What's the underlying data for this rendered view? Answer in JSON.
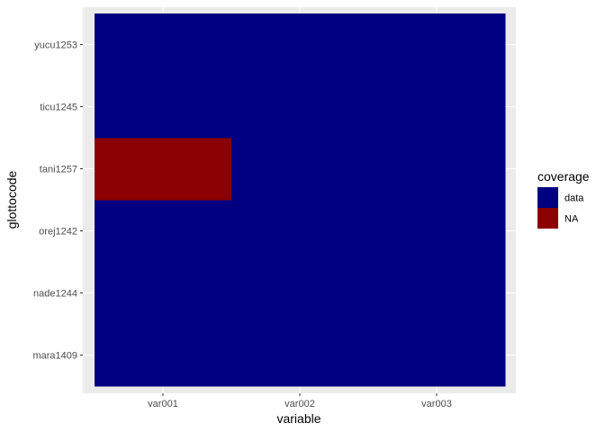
{
  "chart_data": {
    "type": "heatmap",
    "title": "",
    "xlabel": "variable",
    "ylabel": "glottocode",
    "x_categories": [
      "var001",
      "var002",
      "var003"
    ],
    "y_categories": [
      "mara1409",
      "nade1244",
      "orej1242",
      "tani1257",
      "ticu1245",
      "yucu1253"
    ],
    "cells": [
      {
        "x": "var001",
        "y": "mara1409",
        "value": "data"
      },
      {
        "x": "var002",
        "y": "mara1409",
        "value": "data"
      },
      {
        "x": "var003",
        "y": "mara1409",
        "value": "data"
      },
      {
        "x": "var001",
        "y": "nade1244",
        "value": "data"
      },
      {
        "x": "var002",
        "y": "nade1244",
        "value": "data"
      },
      {
        "x": "var003",
        "y": "nade1244",
        "value": "data"
      },
      {
        "x": "var001",
        "y": "orej1242",
        "value": "data"
      },
      {
        "x": "var002",
        "y": "orej1242",
        "value": "data"
      },
      {
        "x": "var003",
        "y": "orej1242",
        "value": "data"
      },
      {
        "x": "var001",
        "y": "tani1257",
        "value": "NA"
      },
      {
        "x": "var002",
        "y": "tani1257",
        "value": "data"
      },
      {
        "x": "var003",
        "y": "tani1257",
        "value": "data"
      },
      {
        "x": "var001",
        "y": "ticu1245",
        "value": "data"
      },
      {
        "x": "var002",
        "y": "ticu1245",
        "value": "data"
      },
      {
        "x": "var003",
        "y": "ticu1245",
        "value": "data"
      },
      {
        "x": "var001",
        "y": "yucu1253",
        "value": "data"
      },
      {
        "x": "var002",
        "y": "yucu1253",
        "value": "data"
      },
      {
        "x": "var003",
        "y": "yucu1253",
        "value": "data"
      }
    ],
    "legend": {
      "title": "coverage",
      "position": "right",
      "entries": [
        {
          "label": "data",
          "color": "#000080"
        },
        {
          "label": "NA",
          "color": "#8b0000"
        }
      ]
    },
    "panel_background": "#ebebeb",
    "grid": true
  }
}
